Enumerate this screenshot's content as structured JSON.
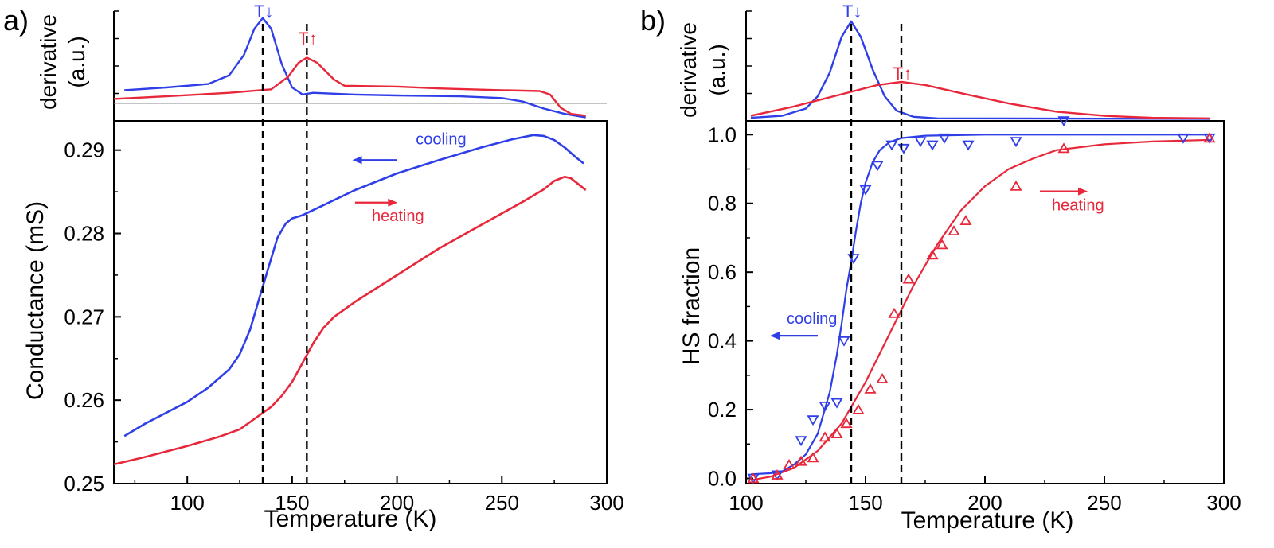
{
  "colors": {
    "cooling": "#2f3fe8",
    "heating": "#e8283a",
    "axis": "#000000",
    "baseline": "#8a8a8a"
  },
  "chart_data": [
    {
      "panel": "a)",
      "type": "line",
      "xlabel": "Temperature (K)",
      "xlim": [
        65,
        300
      ],
      "xticks": [
        100,
        150,
        200,
        250,
        300
      ],
      "derivative": {
        "ylabel_line1": "derivative",
        "ylabel_line2": "(a.u.)",
        "ylim": [
          -0.2,
          1.05
        ],
        "baseline": 0,
        "series": [
          {
            "name": "cooling",
            "color_key": "cooling",
            "points": [
              [
                70,
                0.15
              ],
              [
                90,
                0.18
              ],
              [
                110,
                0.22
              ],
              [
                120,
                0.32
              ],
              [
                127,
                0.55
              ],
              [
                132,
                0.85
              ],
              [
                136,
                0.97
              ],
              [
                140,
                0.85
              ],
              [
                145,
                0.45
              ],
              [
                150,
                0.18
              ],
              [
                155,
                0.1
              ],
              [
                160,
                0.12
              ],
              [
                180,
                0.1
              ],
              [
                200,
                0.09
              ],
              [
                230,
                0.08
              ],
              [
                250,
                0.06
              ],
              [
                260,
                0.02
              ],
              [
                270,
                -0.06
              ],
              [
                280,
                -0.12
              ],
              [
                290,
                -0.16
              ]
            ]
          },
          {
            "name": "heating",
            "color_key": "heating",
            "points": [
              [
                65,
                0.05
              ],
              [
                90,
                0.08
              ],
              [
                120,
                0.12
              ],
              [
                140,
                0.16
              ],
              [
                148,
                0.3
              ],
              [
                153,
                0.46
              ],
              [
                157,
                0.52
              ],
              [
                162,
                0.46
              ],
              [
                170,
                0.27
              ],
              [
                175,
                0.2
              ],
              [
                200,
                0.19
              ],
              [
                220,
                0.17
              ],
              [
                250,
                0.15
              ],
              [
                268,
                0.14
              ],
              [
                273,
                0.1
              ],
              [
                278,
                -0.05
              ],
              [
                283,
                -0.12
              ],
              [
                290,
                -0.14
              ]
            ]
          }
        ],
        "peak_labels": [
          {
            "text": "T↓",
            "x": 136,
            "color_key": "cooling"
          },
          {
            "text": "T↑",
            "x": 157,
            "color_key": "heating"
          }
        ]
      },
      "main": {
        "ylabel": "Conductance (mS)",
        "ylim": [
          0.25,
          0.2935
        ],
        "yticks": [
          0.25,
          0.26,
          0.27,
          0.28,
          0.29
        ],
        "ytick_labels": [
          "0.25",
          "0.26",
          "0.27",
          "0.28",
          "0.29"
        ],
        "series": [
          {
            "name": "cooling",
            "color_key": "cooling",
            "points": [
              [
                70,
                0.2557
              ],
              [
                80,
                0.2572
              ],
              [
                90,
                0.2585
              ],
              [
                100,
                0.2598
              ],
              [
                110,
                0.2615
              ],
              [
                120,
                0.2637
              ],
              [
                125,
                0.2655
              ],
              [
                130,
                0.2685
              ],
              [
                135,
                0.2728
              ],
              [
                140,
                0.277
              ],
              [
                143,
                0.2795
              ],
              [
                147,
                0.2812
              ],
              [
                150,
                0.2818
              ],
              [
                155,
                0.2822
              ],
              [
                160,
                0.2828
              ],
              [
                170,
                0.284
              ],
              [
                180,
                0.2852
              ],
              [
                200,
                0.2872
              ],
              [
                220,
                0.2888
              ],
              [
                240,
                0.2903
              ],
              [
                255,
                0.2913
              ],
              [
                265,
                0.2918
              ],
              [
                270,
                0.2917
              ],
              [
                275,
                0.2912
              ],
              [
                280,
                0.2903
              ],
              [
                285,
                0.2892
              ],
              [
                289,
                0.2884
              ]
            ]
          },
          {
            "name": "heating",
            "color_key": "heating",
            "points": [
              [
                65,
                0.2523
              ],
              [
                80,
                0.2532
              ],
              [
                100,
                0.2545
              ],
              [
                115,
                0.2556
              ],
              [
                125,
                0.2565
              ],
              [
                135,
                0.2583
              ],
              [
                140,
                0.2592
              ],
              [
                145,
                0.2605
              ],
              [
                150,
                0.2622
              ],
              [
                155,
                0.2645
              ],
              [
                160,
                0.2668
              ],
              [
                165,
                0.2687
              ],
              [
                170,
                0.27
              ],
              [
                180,
                0.2718
              ],
              [
                200,
                0.275
              ],
              [
                220,
                0.2782
              ],
              [
                240,
                0.281
              ],
              [
                260,
                0.2838
              ],
              [
                270,
                0.2853
              ],
              [
                275,
                0.2863
              ],
              [
                280,
                0.2868
              ],
              [
                283,
                0.2866
              ],
              [
                287,
                0.2858
              ],
              [
                290,
                0.2852
              ]
            ]
          }
        ],
        "annotations": [
          {
            "text": "cooling",
            "color_key": "cooling",
            "text_at": [
              209,
              0.2907
            ],
            "arrow": "left",
            "arrow_from": [
              200,
              0.2888
            ],
            "arrow_to": [
              181,
              0.2888
            ]
          },
          {
            "text": "heating",
            "color_key": "heating",
            "text_at": [
              188,
              0.2815
            ],
            "arrow": "right",
            "arrow_from": [
              180,
              0.2837
            ],
            "arrow_to": [
              198,
              0.2837
            ]
          }
        ]
      },
      "transition_lines": [
        136,
        157
      ]
    },
    {
      "panel": "b)",
      "type": "scatter",
      "xlabel": "Temperature (K)",
      "xlim": [
        100,
        300
      ],
      "xticks": [
        100,
        150,
        200,
        250,
        300
      ],
      "derivative": {
        "ylabel_line1": "derivative",
        "ylabel_line2": "(a.u.)",
        "ylim": [
          -0.02,
          1.05
        ],
        "series": [
          {
            "name": "cooling",
            "color_key": "cooling",
            "points": [
              [
                102,
                0.01
              ],
              [
                115,
                0.03
              ],
              [
                125,
                0.1
              ],
              [
                130,
                0.22
              ],
              [
                135,
                0.45
              ],
              [
                140,
                0.8
              ],
              [
                144,
                0.95
              ],
              [
                148,
                0.8
              ],
              [
                153,
                0.48
              ],
              [
                158,
                0.22
              ],
              [
                163,
                0.08
              ],
              [
                170,
                0.02
              ],
              [
                180,
                0.005
              ],
              [
                294,
                0.0
              ]
            ]
          },
          {
            "name": "heating",
            "color_key": "heating",
            "points": [
              [
                102,
                0.03
              ],
              [
                120,
                0.12
              ],
              [
                140,
                0.24
              ],
              [
                155,
                0.33
              ],
              [
                165,
                0.36
              ],
              [
                175,
                0.33
              ],
              [
                190,
                0.25
              ],
              [
                210,
                0.15
              ],
              [
                230,
                0.07
              ],
              [
                250,
                0.03
              ],
              [
                270,
                0.01
              ],
              [
                294,
                0.005
              ]
            ]
          }
        ],
        "peak_labels": [
          {
            "text": "T↓",
            "x": 144,
            "color_key": "cooling"
          },
          {
            "text": "T↑",
            "x": 165,
            "color_key": "heating"
          }
        ]
      },
      "main": {
        "ylabel": "HS fraction",
        "ylim": [
          -0.015,
          1.04
        ],
        "yticks": [
          0.0,
          0.2,
          0.4,
          0.6,
          0.8,
          1.0
        ],
        "ytick_labels": [
          "0.0",
          "0.2",
          "0.4",
          "0.6",
          "0.8",
          "1.0"
        ],
        "fits": [
          {
            "name": "cooling fit",
            "color_key": "cooling",
            "points": [
              [
                102,
                0.012
              ],
              [
                110,
                0.015
              ],
              [
                115,
                0.02
              ],
              [
                120,
                0.04
              ],
              [
                125,
                0.07
              ],
              [
                130,
                0.13
              ],
              [
                135,
                0.25
              ],
              [
                138,
                0.36
              ],
              [
                140,
                0.45
              ],
              [
                142,
                0.55
              ],
              [
                144,
                0.63
              ],
              [
                146,
                0.72
              ],
              [
                148,
                0.8
              ],
              [
                150,
                0.86
              ],
              [
                153,
                0.92
              ],
              [
                156,
                0.955
              ],
              [
                160,
                0.978
              ],
              [
                165,
                0.99
              ],
              [
                175,
                0.997
              ],
              [
                200,
                1.0
              ],
              [
                295,
                1.0
              ]
            ]
          },
          {
            "name": "heating fit",
            "color_key": "heating",
            "points": [
              [
                102,
                -0.005
              ],
              [
                110,
                0.005
              ],
              [
                120,
                0.03
              ],
              [
                130,
                0.08
              ],
              [
                140,
                0.16
              ],
              [
                150,
                0.28
              ],
              [
                160,
                0.42
              ],
              [
                170,
                0.56
              ],
              [
                180,
                0.68
              ],
              [
                190,
                0.78
              ],
              [
                200,
                0.85
              ],
              [
                210,
                0.9
              ],
              [
                220,
                0.93
              ],
              [
                230,
                0.955
              ],
              [
                250,
                0.972
              ],
              [
                270,
                0.98
              ],
              [
                295,
                0.985
              ]
            ]
          }
        ],
        "series": [
          {
            "name": "cooling",
            "marker": "triangle-down",
            "color_key": "cooling",
            "points": [
              [
                103,
                0.0
              ],
              [
                113,
                0.01
              ],
              [
                123,
                0.11
              ],
              [
                128,
                0.17
              ],
              [
                133,
                0.21
              ],
              [
                138,
                0.22
              ],
              [
                141,
                0.4
              ],
              [
                145,
                0.64
              ],
              [
                150,
                0.84
              ],
              [
                155,
                0.91
              ],
              [
                161,
                0.97
              ],
              [
                166,
                0.96
              ],
              [
                173,
                0.98
              ],
              [
                178,
                0.97
              ],
              [
                183,
                0.99
              ],
              [
                193,
                0.97
              ],
              [
                213,
                0.98
              ],
              [
                233,
                1.04
              ],
              [
                283,
                0.99
              ],
              [
                294,
                0.99
              ]
            ]
          },
          {
            "name": "heating",
            "marker": "triangle-up",
            "color_key": "heating",
            "points": [
              [
                103,
                0.0
              ],
              [
                113,
                0.01
              ],
              [
                118,
                0.04
              ],
              [
                123,
                0.05
              ],
              [
                128,
                0.06
              ],
              [
                133,
                0.12
              ],
              [
                138,
                0.13
              ],
              [
                142,
                0.16
              ],
              [
                147,
                0.2
              ],
              [
                152,
                0.26
              ],
              [
                157,
                0.29
              ],
              [
                162,
                0.48
              ],
              [
                168,
                0.58
              ],
              [
                178,
                0.65
              ],
              [
                182,
                0.68
              ],
              [
                187,
                0.72
              ],
              [
                192,
                0.75
              ],
              [
                213,
                0.85
              ],
              [
                233,
                0.96
              ],
              [
                294,
                0.99
              ]
            ]
          }
        ],
        "annotations": [
          {
            "text": "cooling",
            "color_key": "cooling",
            "text_at": [
              117,
              0.45
            ],
            "arrow": "left",
            "arrow_from": [
              130,
              0.415
            ],
            "arrow_to": [
              112,
              0.415
            ]
          },
          {
            "text": "heating",
            "color_key": "heating",
            "text_at": [
              228,
              0.78
            ],
            "arrow": "right",
            "arrow_from": [
              223,
              0.835
            ],
            "arrow_to": [
              241,
              0.835
            ]
          }
        ]
      },
      "transition_lines": [
        144,
        165
      ]
    }
  ]
}
